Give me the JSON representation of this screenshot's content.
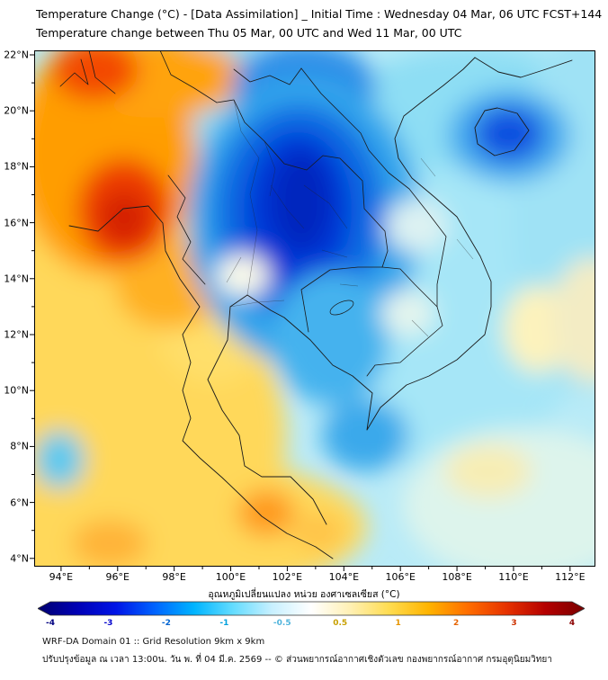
{
  "header": {
    "line1": "Temperature Change (°C) - [Data Assimilation] _ Initial Time : Wednesday 04 Mar, 06 UTC FCST+144",
    "line2": "Temperature change between Thu 05 Mar, 00 UTC and Wed 11 Mar, 00 UTC"
  },
  "map": {
    "lat_ticks": [
      {
        "value": 22,
        "label": "22°N"
      },
      {
        "value": 20,
        "label": "20°N"
      },
      {
        "value": 18,
        "label": "18°N"
      },
      {
        "value": 16,
        "label": "16°N"
      },
      {
        "value": 14,
        "label": "14°N"
      },
      {
        "value": 12,
        "label": "12°N"
      },
      {
        "value": 10,
        "label": "10°N"
      },
      {
        "value": 8,
        "label": "8°N"
      },
      {
        "value": 6,
        "label": "6°N"
      },
      {
        "value": 4,
        "label": "4°N"
      }
    ],
    "lon_ticks": [
      {
        "value": 94,
        "label": "94°E"
      },
      {
        "value": 96,
        "label": "96°E"
      },
      {
        "value": 98,
        "label": "98°E"
      },
      {
        "value": 100,
        "label": "100°E"
      },
      {
        "value": 102,
        "label": "102°E"
      },
      {
        "value": 104,
        "label": "104°E"
      },
      {
        "value": 106,
        "label": "106°E"
      },
      {
        "value": 108,
        "label": "108°E"
      },
      {
        "value": 110,
        "label": "110°E"
      },
      {
        "value": 112,
        "label": "112°E"
      }
    ],
    "summary": {
      "type": "filled temperature-anomaly field over Southeast Asia",
      "value_range_c": [
        -4,
        4
      ],
      "warming_max": "about +3 to +4 °C over Myanmar (~96°E, 16-18°N)",
      "cooling_max": "about -3 to -4 °C over Thailand/Laos (~101-104°E, 13-19°N)",
      "secondary_cooling": "about -2 °C near Hainan (~110°E, 19.5°N)",
      "secondary_warming": "+1 to +2 °C over far south peninsula (~101-103°E, 5-6°N)"
    }
  },
  "colorbar": {
    "title": "อุณหภูมิเปลี่ยนแปลง หน่วย องศาเซลเซียส (°C)",
    "gradient": [
      "#00006e",
      "#0000b4",
      "#0014e6",
      "#0064ff",
      "#00b4ff",
      "#64dcff",
      "#c8f0ff",
      "#ffffff",
      "#fff0b4",
      "#ffdc50",
      "#ffb400",
      "#ff6e00",
      "#e63200",
      "#b40000",
      "#780000"
    ],
    "ticks": [
      {
        "label": "-4",
        "color": "#000080"
      },
      {
        "label": "-3",
        "color": "#0000cd"
      },
      {
        "label": "-2",
        "color": "#0064d2"
      },
      {
        "label": "-1",
        "color": "#00a0dc"
      },
      {
        "label": "-0.5",
        "color": "#50b4dc"
      },
      {
        "label": "0.5",
        "color": "#c8a000"
      },
      {
        "label": "1",
        "color": "#e69500"
      },
      {
        "label": "2",
        "color": "#e66400"
      },
      {
        "label": "3",
        "color": "#cd3200"
      },
      {
        "label": "4",
        "color": "#8b0000"
      }
    ]
  },
  "footer": {
    "line1": "WRF-DA Domain 01 :: Grid Resolution 9km x 9km",
    "line2": "ปรับปรุงข้อมูล ณ เวลา 13:00น. วัน พ. ที่ 04 มี.ค. 2569 -- © ส่วนพยากรณ์อากาศเชิงตัวเลข กองพยากรณ์อากาศ กรมอุตุนิยมวิทยา"
  }
}
